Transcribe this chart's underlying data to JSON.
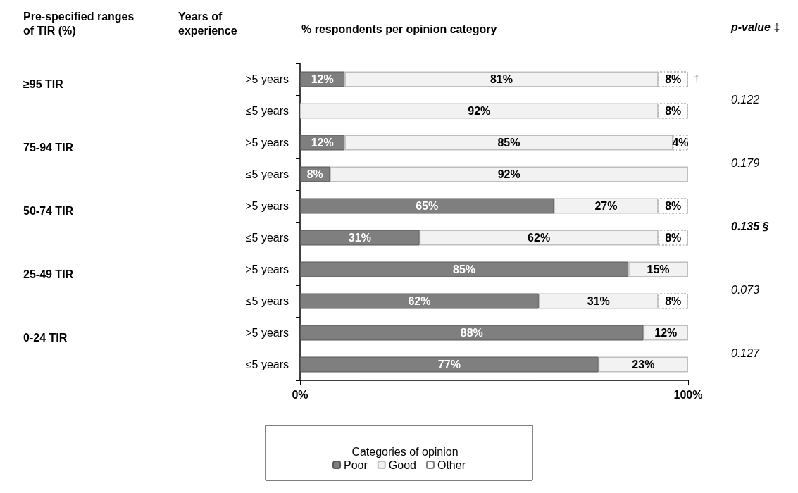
{
  "chart_data": {
    "type": "bar",
    "orientation": "horizontal",
    "stacked": true,
    "title": "% respondents per opinion category",
    "legend_title": "Categories of opinion",
    "legend": "bottom",
    "categories": [
      ">5 years",
      "≤5 years",
      ">5 years",
      "≤5 years",
      ">5 years",
      "≤5 years",
      ">5 years",
      "≤5 years",
      ">5 years",
      "≤5 years"
    ],
    "xlim": [
      0,
      100
    ],
    "xticks": [
      {
        "value": 0,
        "label": "0%"
      },
      {
        "value": 100,
        "label": "100%"
      }
    ],
    "series": [
      {
        "name": "Poor",
        "color": "#7f7f7f",
        "values": [
          11.5,
          null,
          11.5,
          7.7,
          65.4,
          30.8,
          84.6,
          61.5,
          88.5,
          76.9
        ],
        "value_labels": [
          "12%",
          null,
          "12%",
          "8%",
          "65%",
          "31%",
          "85%",
          "62%",
          "88%",
          "77%"
        ]
      },
      {
        "name": "Good",
        "color": "#f2f2f2",
        "values": [
          80.8,
          92.3,
          84.6,
          92.3,
          26.9,
          61.5,
          15.4,
          30.8,
          11.5,
          23.1
        ],
        "value_labels": [
          "81%",
          "92%",
          "85%",
          "92%",
          "27%",
          "62%",
          "15%",
          "31%",
          "12%",
          "23%"
        ]
      },
      {
        "name": "Other",
        "color": "#ffffff",
        "values": [
          7.7,
          7.7,
          3.8,
          null,
          7.7,
          7.7,
          null,
          7.7,
          null,
          null
        ],
        "value_labels": [
          "8%",
          "8%",
          "4%",
          null,
          "8%",
          "8%",
          null,
          "8%",
          null,
          null
        ]
      }
    ],
    "annotations": [
      "Pre-specified ranges of TIR (%)",
      "Years of experience",
      "p-value ‡",
      "≥95 TIR",
      "75-94 TIR",
      "50-74 TIR",
      "25-49 TIR",
      "0-24 TIR",
      "0.122",
      "0.179",
      "0.135 §",
      "0.073",
      "0.127",
      "†"
    ]
  }
}
